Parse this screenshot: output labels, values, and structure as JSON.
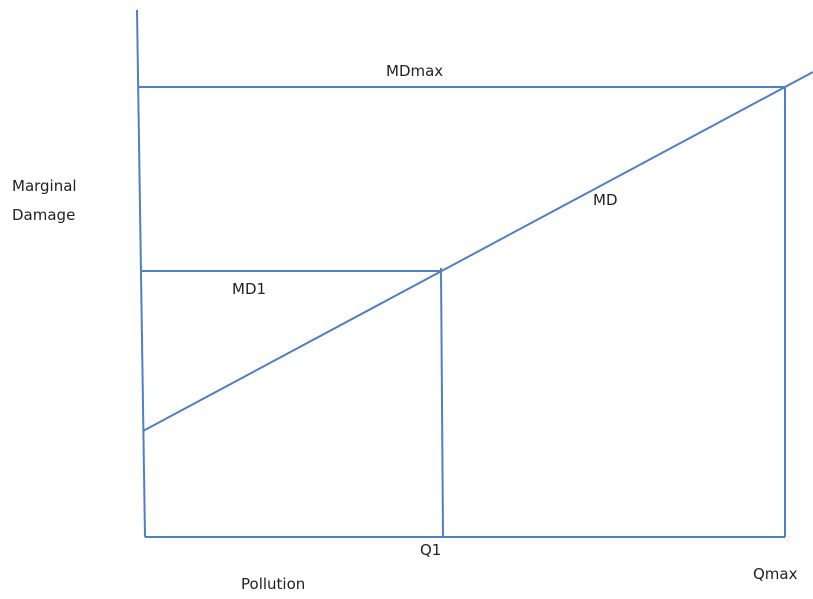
{
  "colors": {
    "line": "#4f7fc4",
    "text": "#222222"
  },
  "labels": {
    "y_axis_line1": "Marginal",
    "y_axis_line2": "Damage",
    "x_axis": "Pollution",
    "md_max": "MDmax",
    "md1": "MD1",
    "md_curve": "MD",
    "q1": "Q1",
    "q_max": "Qmax"
  }
}
